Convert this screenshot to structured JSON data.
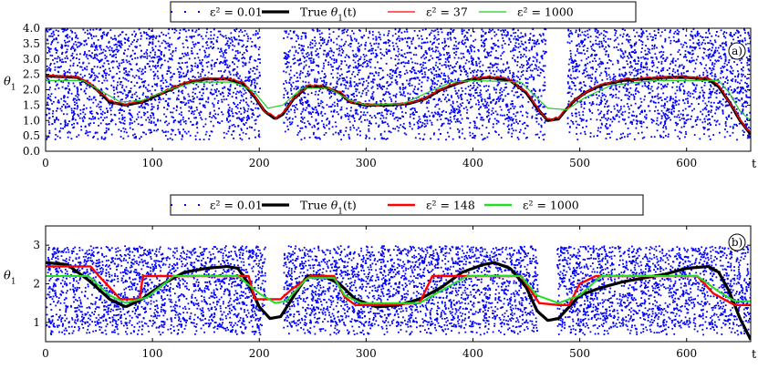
{
  "chart_data": [
    {
      "type": "line",
      "panel": "a)",
      "xlabel": "t",
      "ylabel": "θ1",
      "xlim": [
        0,
        660
      ],
      "ylim": [
        0,
        4
      ],
      "xticks": [
        0,
        100,
        200,
        300,
        400,
        500,
        600
      ],
      "yticks": [
        0.0,
        0.5,
        1.0,
        1.5,
        2.0,
        2.5,
        3.0,
        3.5,
        4.0
      ],
      "ytick_labels": [
        "0.0",
        "0.5",
        "1.0",
        "1.5",
        "2.0",
        "2.5",
        "3.0",
        "3.5",
        "4.0"
      ],
      "legend": [
        "ε² = 0.01",
        "True θ1(t)",
        "ε² = 37",
        "ε² = 1000"
      ],
      "series": [
        {
          "name": "ε² = 0.01",
          "style": "dots",
          "color": "#0000ff",
          "gaps": [
            [
              200,
              222
            ],
            [
              468,
              488
            ]
          ],
          "noise_range": [
            0.4,
            4.0
          ]
        },
        {
          "name": "True θ1(t)",
          "style": "thick-line",
          "color": "#000000",
          "x": [
            0,
            30,
            45,
            60,
            75,
            90,
            110,
            130,
            150,
            170,
            185,
            195,
            205,
            215,
            222,
            232,
            245,
            260,
            275,
            285,
            300,
            320,
            340,
            355,
            370,
            385,
            400,
            415,
            435,
            450,
            460,
            470,
            480,
            487,
            495,
            505,
            520,
            540,
            560,
            580,
            600,
            620,
            630,
            640,
            650,
            660
          ],
          "y": [
            2.45,
            2.4,
            2.1,
            1.6,
            1.5,
            1.6,
            1.9,
            2.2,
            2.35,
            2.35,
            2.2,
            1.8,
            1.3,
            1.05,
            1.2,
            1.7,
            2.1,
            2.1,
            1.9,
            1.6,
            1.5,
            1.5,
            1.55,
            1.7,
            2.0,
            2.2,
            2.35,
            2.4,
            2.3,
            1.9,
            1.4,
            1.0,
            1.05,
            1.35,
            1.65,
            1.9,
            2.15,
            2.3,
            2.35,
            2.4,
            2.4,
            2.35,
            2.1,
            1.6,
            1.0,
            0.55
          ]
        },
        {
          "name": "ε² = 37",
          "style": "jagged-line",
          "color": "#ff0000",
          "x": [
            0,
            30,
            45,
            60,
            75,
            90,
            110,
            130,
            150,
            170,
            185,
            195,
            205,
            215,
            222,
            232,
            245,
            260,
            275,
            285,
            300,
            320,
            340,
            355,
            370,
            385,
            400,
            415,
            435,
            450,
            460,
            470,
            480,
            487,
            495,
            505,
            520,
            540,
            560,
            580,
            600,
            620,
            630,
            640,
            650,
            660
          ],
          "y": [
            2.45,
            2.4,
            2.1,
            1.6,
            1.5,
            1.6,
            1.9,
            2.2,
            2.35,
            2.35,
            2.2,
            1.8,
            1.3,
            1.05,
            1.2,
            1.7,
            2.1,
            2.1,
            1.9,
            1.6,
            1.5,
            1.5,
            1.55,
            1.7,
            2.0,
            2.2,
            2.35,
            2.4,
            2.3,
            1.9,
            1.4,
            1.0,
            1.05,
            1.35,
            1.65,
            1.9,
            2.15,
            2.3,
            2.35,
            2.4,
            2.4,
            2.35,
            2.1,
            1.6,
            1.0,
            0.55
          ]
        },
        {
          "name": "ε² = 1000",
          "style": "thin-line",
          "color": "#22cc22",
          "x": [
            0,
            35,
            55,
            70,
            90,
            115,
            140,
            175,
            195,
            208,
            222,
            240,
            265,
            285,
            300,
            335,
            360,
            380,
            400,
            445,
            458,
            470,
            488,
            505,
            530,
            570,
            630,
            640,
            650,
            660
          ],
          "y": [
            2.3,
            2.3,
            1.9,
            1.6,
            1.65,
            2.0,
            2.25,
            2.25,
            1.95,
            1.4,
            1.5,
            2.05,
            2.05,
            1.65,
            1.5,
            1.55,
            1.95,
            2.25,
            2.3,
            2.25,
            1.8,
            1.4,
            1.35,
            1.75,
            2.15,
            2.3,
            2.3,
            1.9,
            1.3,
            1.0
          ]
        }
      ]
    },
    {
      "type": "line",
      "panel": "b)",
      "xlabel": "t",
      "ylabel": "θ1",
      "xlim": [
        0,
        660
      ],
      "ylim": [
        0.5,
        3.5
      ],
      "xticks": [
        0,
        100,
        200,
        300,
        400,
        500,
        600
      ],
      "yticks": [
        1,
        2,
        3
      ],
      "ytick_labels": [
        "1",
        "2",
        "3"
      ],
      "legend": [
        "ε² = 0.01",
        "True θ1(t)",
        "ε² = 148",
        "ε² = 1000"
      ],
      "series": [
        {
          "name": "ε² = 0.01",
          "style": "dots",
          "color": "#0000ff",
          "gaps": [
            [
              205,
              222
            ],
            [
              460,
              478
            ]
          ],
          "noise_range": [
            0.7,
            3.0
          ]
        },
        {
          "name": "True θ1(t)",
          "style": "thick-line",
          "color": "#000000",
          "x": [
            0,
            20,
            40,
            60,
            75,
            90,
            110,
            130,
            150,
            170,
            180,
            190,
            200,
            210,
            220,
            235,
            245,
            260,
            275,
            290,
            310,
            330,
            350,
            370,
            390,
            410,
            420,
            435,
            450,
            460,
            470,
            480,
            490,
            500,
            520,
            540,
            560,
            580,
            600,
            620,
            630,
            640,
            650,
            660
          ],
          "y": [
            2.55,
            2.5,
            2.1,
            1.6,
            1.4,
            1.6,
            2.0,
            2.3,
            2.4,
            2.45,
            2.4,
            2.0,
            1.4,
            1.1,
            1.15,
            1.8,
            2.2,
            2.2,
            2.0,
            1.6,
            1.4,
            1.45,
            1.6,
            1.9,
            2.3,
            2.5,
            2.55,
            2.4,
            1.9,
            1.3,
            1.05,
            1.1,
            1.4,
            1.7,
            1.9,
            2.05,
            2.15,
            2.25,
            2.4,
            2.45,
            2.3,
            1.8,
            1.1,
            0.55
          ]
        },
        {
          "name": "ε² = 148",
          "style": "step-line",
          "color": "#ff0000",
          "x": [
            0,
            42,
            50,
            70,
            88,
            91,
            110,
            130,
            190,
            196,
            214,
            220,
            230,
            248,
            270,
            280,
            290,
            310,
            350,
            362,
            382,
            398,
            420,
            430,
            445,
            462,
            480,
            490,
            500,
            515,
            540,
            610,
            625,
            645,
            660
          ],
          "y": [
            2.45,
            2.45,
            2.2,
            1.6,
            1.6,
            2.2,
            2.2,
            2.2,
            2.2,
            1.6,
            1.6,
            1.6,
            1.85,
            2.2,
            2.2,
            1.65,
            1.45,
            1.45,
            1.5,
            2.2,
            2.2,
            2.2,
            2.2,
            2.2,
            2.2,
            1.5,
            1.45,
            1.45,
            2.0,
            2.2,
            2.2,
            2.2,
            1.75,
            1.45,
            1.45
          ]
        },
        {
          "name": "ε² = 1000",
          "style": "line",
          "color": "#22dd22",
          "x": [
            0,
            40,
            60,
            75,
            95,
            120,
            180,
            200,
            215,
            225,
            245,
            270,
            280,
            295,
            350,
            375,
            395,
            445,
            460,
            480,
            500,
            520,
            610,
            630,
            645,
            660
          ],
          "y": [
            2.2,
            2.2,
            1.7,
            1.5,
            1.65,
            2.2,
            2.2,
            1.75,
            1.5,
            1.55,
            2.15,
            2.15,
            1.7,
            1.5,
            1.5,
            1.9,
            2.2,
            2.2,
            1.7,
            1.5,
            1.7,
            2.2,
            2.2,
            1.8,
            1.55,
            1.55
          ]
        }
      ]
    }
  ]
}
